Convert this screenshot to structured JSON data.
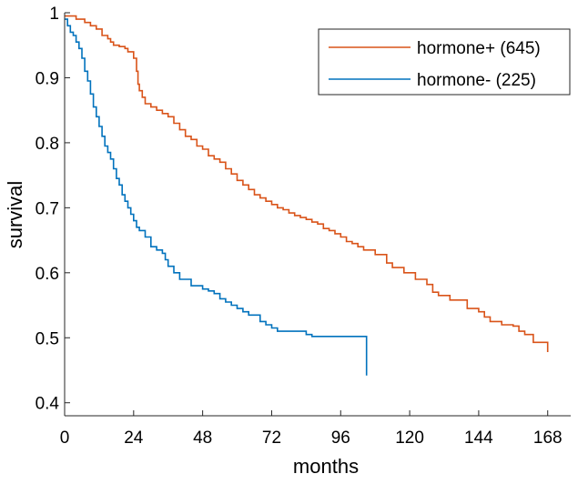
{
  "chart_data": {
    "type": "line",
    "title": "",
    "xlabel": "months",
    "ylabel": "survival",
    "xlim": [
      0,
      176
    ],
    "ylim": [
      0.38,
      1.0
    ],
    "xticks": [
      0,
      24,
      48,
      72,
      96,
      120,
      144,
      168
    ],
    "xtick_labels": [
      "0",
      "24",
      "48",
      "72",
      "96",
      "120",
      "144",
      "168"
    ],
    "yticks": [
      0.4,
      0.5,
      0.6,
      0.7,
      0.8,
      0.9,
      1.0
    ],
    "ytick_labels": [
      "0.4",
      "0.5",
      "0.6",
      "0.7",
      "0.8",
      "0.9",
      "1"
    ],
    "grid": false,
    "legend_position": "top-right",
    "series": [
      {
        "name": "hormone+ (645)",
        "color": "#D95319",
        "step": true,
        "x": [
          0,
          4,
          7,
          9,
          11,
          13,
          15,
          16,
          17,
          19,
          21,
          22,
          24,
          25,
          25.5,
          26,
          27,
          28,
          30,
          32,
          34,
          36,
          38,
          40,
          42,
          44,
          46,
          48,
          50,
          52,
          54,
          56,
          58,
          60,
          62,
          64,
          66,
          68,
          70,
          72,
          74,
          76,
          78,
          80,
          82,
          84,
          86,
          88,
          90,
          92,
          94,
          96,
          98,
          100,
          102,
          104,
          108,
          112,
          114,
          118,
          122,
          126,
          128,
          130,
          134,
          140,
          142,
          144,
          146,
          148,
          152,
          156,
          158,
          160,
          163,
          164,
          168
        ],
        "y": [
          0.995,
          0.99,
          0.985,
          0.98,
          0.975,
          0.965,
          0.96,
          0.955,
          0.95,
          0.948,
          0.945,
          0.94,
          0.93,
          0.91,
          0.89,
          0.88,
          0.87,
          0.86,
          0.855,
          0.85,
          0.845,
          0.84,
          0.83,
          0.82,
          0.81,
          0.805,
          0.795,
          0.79,
          0.78,
          0.775,
          0.77,
          0.76,
          0.752,
          0.742,
          0.735,
          0.728,
          0.72,
          0.715,
          0.71,
          0.705,
          0.7,
          0.697,
          0.692,
          0.688,
          0.685,
          0.682,
          0.678,
          0.675,
          0.668,
          0.665,
          0.66,
          0.655,
          0.648,
          0.645,
          0.64,
          0.635,
          0.628,
          0.615,
          0.608,
          0.6,
          0.59,
          0.582,
          0.57,
          0.565,
          0.558,
          0.545,
          0.545,
          0.54,
          0.532,
          0.525,
          0.52,
          0.518,
          0.51,
          0.505,
          0.493,
          0.493,
          0.478
        ]
      },
      {
        "name": "hormone- (225)",
        "color": "#0072BD",
        "step": true,
        "x": [
          0,
          1,
          2,
          3,
          4,
          5,
          6,
          7,
          8,
          9,
          10,
          11,
          12,
          13,
          14,
          15,
          16,
          17,
          18,
          19,
          20,
          21,
          22,
          23,
          24,
          25,
          26,
          28,
          30,
          32,
          34,
          35,
          36,
          38,
          40,
          44,
          48,
          50,
          52,
          54,
          56,
          58,
          60,
          62,
          64,
          68,
          70,
          72,
          74,
          76,
          80,
          82,
          84,
          86,
          88,
          104,
          105
        ],
        "y": [
          0.99,
          0.98,
          0.97,
          0.965,
          0.955,
          0.945,
          0.93,
          0.91,
          0.895,
          0.875,
          0.855,
          0.84,
          0.825,
          0.81,
          0.795,
          0.785,
          0.775,
          0.76,
          0.745,
          0.735,
          0.72,
          0.71,
          0.7,
          0.69,
          0.68,
          0.67,
          0.665,
          0.655,
          0.64,
          0.635,
          0.63,
          0.62,
          0.61,
          0.6,
          0.59,
          0.58,
          0.575,
          0.572,
          0.568,
          0.56,
          0.555,
          0.55,
          0.545,
          0.54,
          0.535,
          0.525,
          0.52,
          0.515,
          0.51,
          0.51,
          0.51,
          0.51,
          0.505,
          0.502,
          0.502,
          0.502,
          0.442
        ]
      }
    ]
  }
}
